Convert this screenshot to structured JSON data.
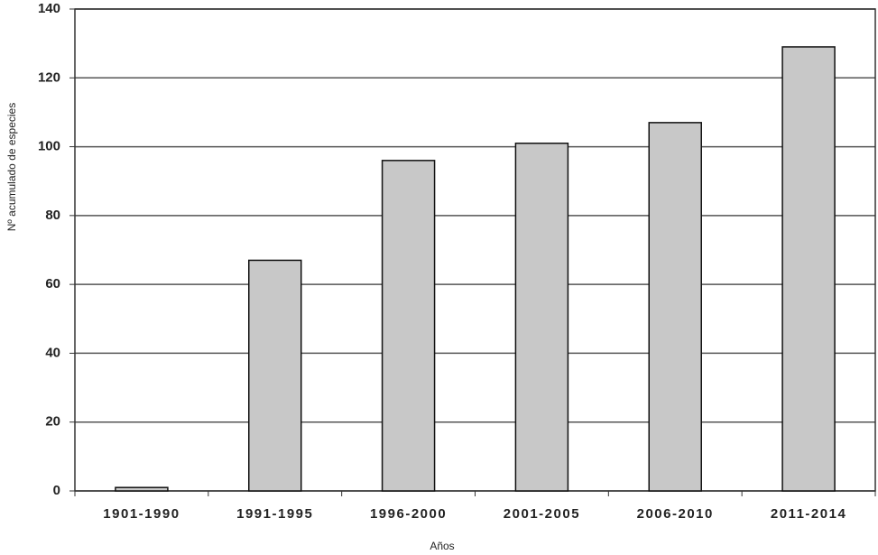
{
  "chart_data": {
    "type": "bar",
    "x_label": "Años",
    "y_label": "Nº acumulado de especies",
    "categories": [
      "1901-1990",
      "1991-1995",
      "1996-2000",
      "2001-2005",
      "2006-2010",
      "2011-2014"
    ],
    "values": [
      1,
      67,
      96,
      101,
      107,
      129
    ],
    "color": "#c8c8c8",
    "ylim": [
      0,
      140
    ],
    "yticks": [
      0,
      20,
      40,
      60,
      80,
      100,
      120,
      140
    ],
    "grid": true
  }
}
